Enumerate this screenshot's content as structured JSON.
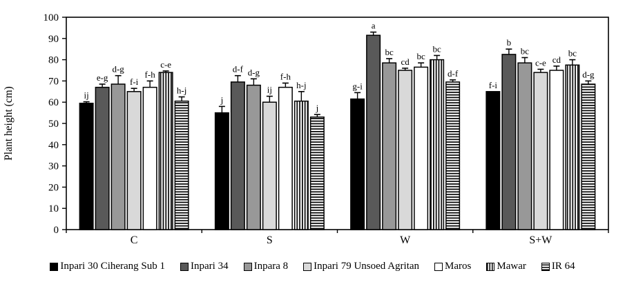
{
  "chart_data": {
    "type": "bar",
    "title": "",
    "xlabel": "",
    "ylabel": "Plant height (cm)",
    "ylim": [
      0,
      100
    ],
    "ytick_step": 10,
    "grid": false,
    "legend_position": "bottom",
    "plot_border": "full-box",
    "bar_border_color": "#000000",
    "categories": [
      "C",
      "S",
      "W",
      "S+W"
    ],
    "series": [
      {
        "name": "Inpari 30 Ciherang Sub 1",
        "fill": "#000000",
        "pattern": "solid",
        "values": [
          59.5,
          55,
          61.5,
          65
        ],
        "errors": [
          0.7,
          3,
          3,
          0
        ],
        "letters": [
          "ij",
          "j",
          "g-i",
          "f-i"
        ]
      },
      {
        "name": "Inpari 34",
        "fill": "#595959",
        "pattern": "solid",
        "values": [
          67,
          69.5,
          91.5,
          82.5
        ],
        "errors": [
          1.5,
          3,
          1.5,
          2.5
        ],
        "letters": [
          "e-g",
          "d-f",
          "a",
          "b"
        ]
      },
      {
        "name": "Inpara 8",
        "fill": "#989898",
        "pattern": "solid",
        "values": [
          68.5,
          68,
          78.5,
          78.5
        ],
        "errors": [
          4,
          3,
          2,
          2.5
        ],
        "letters": [
          "d-g",
          "d-g",
          "bc",
          "bc"
        ]
      },
      {
        "name": "Inpari 79 Unsoed Agritan",
        "fill": "#d9d9d9",
        "pattern": "solid",
        "values": [
          65,
          60,
          75,
          74
        ],
        "errors": [
          1.5,
          2.8,
          1,
          1.5
        ],
        "letters": [
          "f-i",
          "ij",
          "cd",
          "c-e"
        ]
      },
      {
        "name": "Maros",
        "fill": "#ffffff",
        "pattern": "solid",
        "values": [
          67,
          67,
          76.5,
          75
        ],
        "errors": [
          3,
          2,
          2,
          2
        ],
        "letters": [
          "f-h",
          "f-h",
          "bc",
          "cd"
        ]
      },
      {
        "name": "Mawar",
        "fill": "#ffffff",
        "pattern": "vertical-stripes",
        "values": [
          74,
          60.5,
          80,
          77.5
        ],
        "errors": [
          0.7,
          4.5,
          2,
          2.5
        ],
        "letters": [
          "c-e",
          "h-j",
          "bc",
          "bc"
        ]
      },
      {
        "name": "IR 64",
        "fill": "#ffffff",
        "pattern": "horizontal-stripes",
        "values": [
          60.5,
          53,
          69.5,
          68.5
        ],
        "errors": [
          2,
          1.2,
          1,
          1.5
        ],
        "letters": [
          "h-j",
          "j",
          "d-f",
          "d-g"
        ]
      }
    ]
  }
}
